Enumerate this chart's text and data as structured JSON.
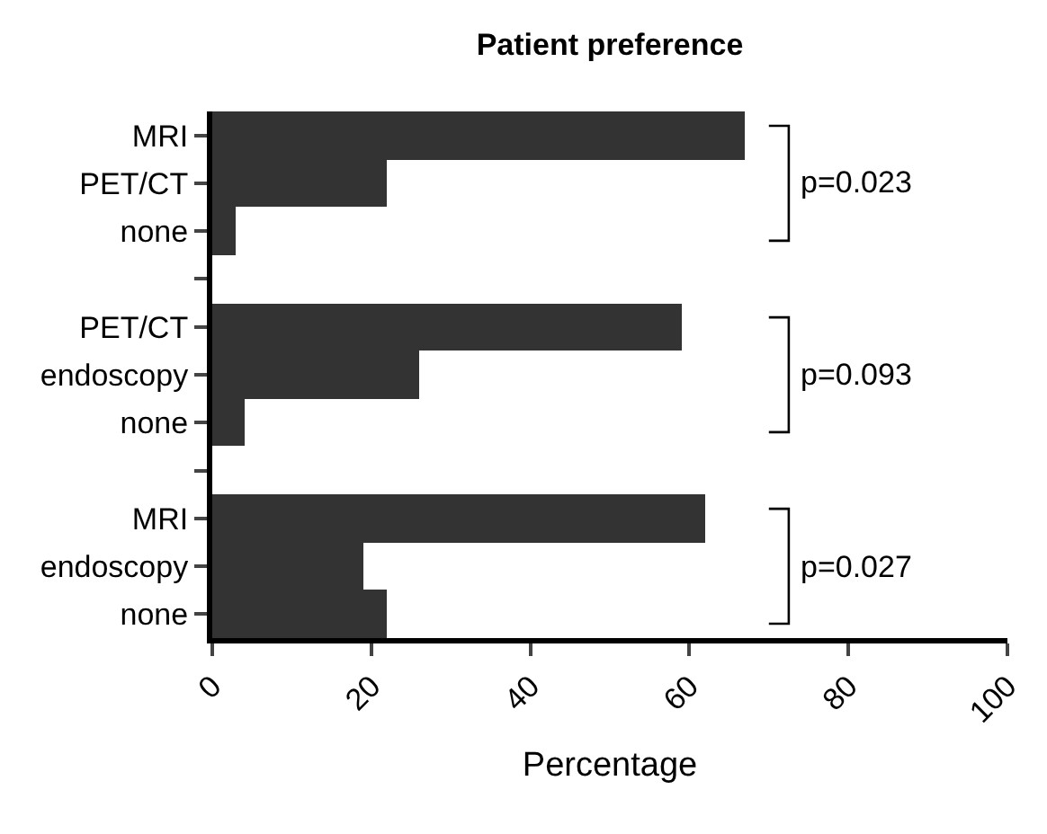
{
  "chart_data": {
    "type": "bar",
    "orientation": "horizontal",
    "title": "Patient preference",
    "xlabel": "Percentage",
    "categories": [
      "MRI",
      "PET/CT",
      "none",
      null,
      "PET/CT",
      "endoscopy",
      "none",
      null,
      "MRI",
      "endoscopy",
      "none"
    ],
    "values": [
      67,
      22,
      3,
      null,
      59,
      26,
      4,
      null,
      62,
      19,
      22
    ],
    "color": "#333333",
    "xlim": [
      0,
      100
    ],
    "xticks": [
      0,
      20,
      40,
      60,
      80,
      100
    ],
    "annotations": [
      "p=0.023",
      "p=0.093",
      "p=0.027"
    ]
  }
}
